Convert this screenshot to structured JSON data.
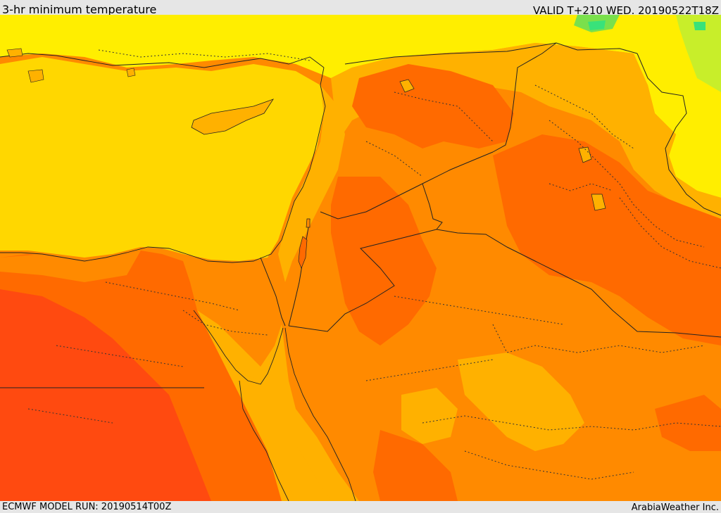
{
  "header": {
    "title": "3-hr minimum temperature",
    "valid": "VALID T+210 WED. 20190522T18Z"
  },
  "footer": {
    "model_run": "ECMWF MODEL RUN: 20190514T00Z",
    "credit": "ArabiaWeather Inc."
  },
  "colors": {
    "sea": "#ffd700",
    "band_yellow": "#ffee00",
    "band_gold": "#ffb100",
    "band_orange": "#ff8a00",
    "band_dark_orange": "#ff6a00",
    "band_red_orange": "#ff4a10",
    "band_green": "#7ae04c",
    "band_green_bright": "#39e27a",
    "border": "#222222"
  }
}
